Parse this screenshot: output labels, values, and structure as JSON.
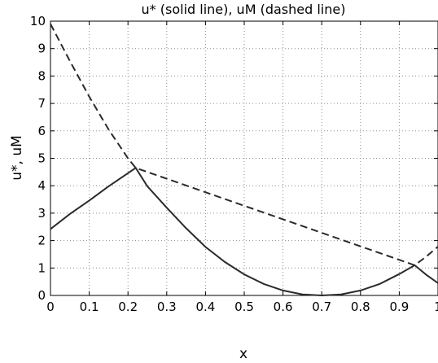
{
  "chart_data": {
    "type": "line",
    "title": "u* (solid line), uM (dashed line)",
    "xlabel": "x",
    "ylabel": "u*, uM",
    "xlim": [
      0,
      1
    ],
    "ylim": [
      0,
      10
    ],
    "grid": true,
    "x_ticks": [
      "0",
      "0.1",
      "0.2",
      "0.3",
      "0.4",
      "0.5",
      "0.6",
      "0.7",
      "0.8",
      "0.9",
      "1"
    ],
    "y_ticks": [
      "0",
      "1",
      "2",
      "3",
      "4",
      "5",
      "6",
      "7",
      "8",
      "9",
      "10"
    ],
    "series": [
      {
        "style": "solid",
        "x": [
          0,
          0.05,
          0.1,
          0.15,
          0.22,
          0.25,
          0.3,
          0.35,
          0.4,
          0.45,
          0.5,
          0.55,
          0.6,
          0.65,
          0.7,
          0.75,
          0.8,
          0.85,
          0.9,
          0.94,
          0.97,
          1.0
        ],
        "y": [
          2.42,
          2.97,
          3.46,
          3.98,
          4.65,
          3.98,
          3.2,
          2.45,
          1.77,
          1.22,
          0.77,
          0.42,
          0.18,
          0.04,
          0.0,
          0.04,
          0.18,
          0.42,
          0.78,
          1.1,
          0.75,
          0.45
        ]
      },
      {
        "style": "dashed",
        "x": [
          0,
          0.05,
          0.1,
          0.15,
          0.2,
          0.22,
          0.94,
          0.97,
          1.0
        ],
        "y": [
          9.9,
          8.55,
          7.25,
          6.05,
          5.0,
          4.65,
          1.1,
          1.42,
          1.78
        ]
      }
    ]
  }
}
